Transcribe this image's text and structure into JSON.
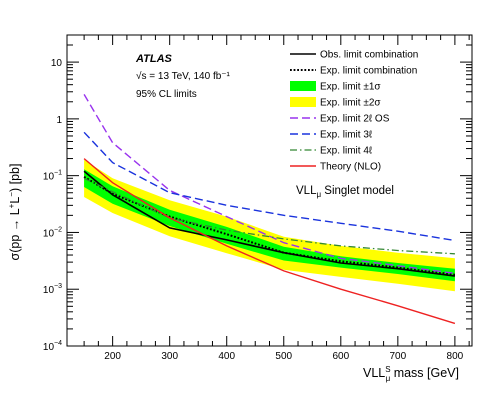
{
  "chart_data": {
    "type": "line",
    "experiment": "ATLAS",
    "energy_label": "√s = 13 TeV, 140 fb⁻¹",
    "cl_label": "95% CL limits",
    "model_label": "VLLμ Singlet model",
    "xlabel": "VLL^S_μ mass [GeV]",
    "ylabel": "σ(pp → L⁺L⁻) [pb]",
    "xlim": [
      120,
      830
    ],
    "ylim": [
      0.0001,
      30
    ],
    "yscale": "log",
    "x_ticks": [
      200,
      300,
      400,
      500,
      600,
      700,
      800
    ],
    "y_ticks": [
      {
        "value": 0.0001,
        "base": "10",
        "exp": "−4"
      },
      {
        "value": 0.001,
        "base": "10",
        "exp": "−3"
      },
      {
        "value": 0.01,
        "base": "10",
        "exp": "−2"
      },
      {
        "value": 0.1,
        "base": "10",
        "exp": "−1"
      },
      {
        "value": 1,
        "base": "1",
        "exp": ""
      },
      {
        "value": 10,
        "base": "10",
        "exp": ""
      }
    ],
    "x": [
      150,
      200,
      300,
      400,
      500,
      600,
      700,
      800
    ],
    "band_2sigma": {
      "name": "Exp. limit ±2σ",
      "color": "#ffff00",
      "lower": [
        0.042,
        0.022,
        0.0086,
        0.0043,
        0.0022,
        0.00165,
        0.00125,
        0.00092
      ],
      "upper": [
        0.19,
        0.09,
        0.037,
        0.019,
        0.0084,
        0.0058,
        0.0044,
        0.0035
      ]
    },
    "band_1sigma": {
      "name": "Exp. limit ±1σ",
      "color": "#00ff00",
      "lower": [
        0.063,
        0.032,
        0.013,
        0.0063,
        0.0032,
        0.0024,
        0.00185,
        0.00138
      ],
      "upper": [
        0.13,
        0.065,
        0.025,
        0.0125,
        0.0056,
        0.0038,
        0.0029,
        0.0023
      ]
    },
    "series": [
      {
        "name": "Obs. limit combination",
        "color": "#000000",
        "dash": "solid",
        "width": 1.6,
        "values": [
          0.12,
          0.046,
          0.012,
          0.0074,
          0.0044,
          0.0029,
          0.0023,
          0.0017
        ]
      },
      {
        "name": "Exp. limit combination",
        "color": "#000000",
        "dash": "dotted",
        "width": 2,
        "values": [
          0.095,
          0.048,
          0.019,
          0.0093,
          0.0044,
          0.0031,
          0.0024,
          0.0018
        ]
      },
      {
        "name": "Exp. limit 2ℓ OS",
        "color": "#9933ee",
        "dash": "dashed",
        "width": 1.4,
        "values": [
          2.7,
          0.38,
          0.055,
          0.019,
          0.0066,
          0.0035,
          0.0026,
          0.0019
        ]
      },
      {
        "name": "Exp. limit 3ℓ",
        "color": "#1a33dd",
        "dash": "dashed",
        "width": 1.4,
        "values": [
          0.58,
          0.17,
          0.05,
          0.03,
          0.02,
          0.0145,
          0.0105,
          0.0072
        ]
      },
      {
        "name": "Exp. limit 4ℓ",
        "color": "#338833",
        "dash": "dashdot",
        "width": 1.3,
        "values": [
          0.09,
          0.052,
          0.018,
          0.011,
          0.0077,
          0.0058,
          0.0048,
          0.0042
        ]
      },
      {
        "name": "Theory (NLO)",
        "color": "#ee2222",
        "dash": "solid",
        "width": 1.4,
        "values": [
          0.2,
          0.075,
          0.018,
          0.0058,
          0.0021,
          0.001,
          0.00051,
          0.00025
        ]
      }
    ]
  }
}
